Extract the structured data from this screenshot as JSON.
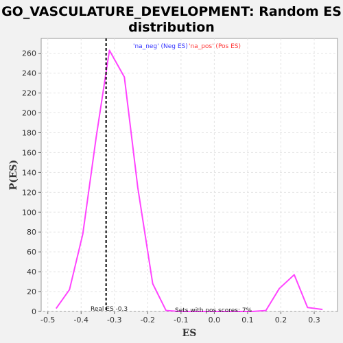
{
  "chart_data": {
    "type": "line",
    "title_line1": "GO_VASCULATURE_DEVELOPMENT: Random ES",
    "title_line2": "distribution",
    "xlabel": "ES",
    "ylabel": "P(ES)",
    "xlim": [
      -0.52,
      0.37
    ],
    "ylim": [
      0,
      275
    ],
    "xticks": [
      -0.5,
      -0.4,
      -0.3,
      -0.2,
      -0.1,
      0.0,
      0.1,
      0.2,
      0.3
    ],
    "xtick_labels": [
      "-0.5",
      "-0.4",
      "-0.3",
      "-0.2",
      "-0.1",
      "0.0",
      "0.1",
      "0.2",
      "0.3"
    ],
    "yticks": [
      0,
      20,
      40,
      60,
      80,
      100,
      120,
      140,
      160,
      180,
      200,
      220,
      240,
      260
    ],
    "ytick_labels": [
      "0",
      "20",
      "40",
      "60",
      "80",
      "100",
      "120",
      "140",
      "160",
      "180",
      "200",
      "220",
      "240",
      "260"
    ],
    "grid": true,
    "legend": [
      {
        "label": "'na_neg' (Neg ES)",
        "color": "#3333ff"
      },
      {
        "label": "'na_pos' (Pos ES)",
        "color": "#ff3333"
      }
    ],
    "series": [
      {
        "color": "#ff44ff",
        "x": [
          -0.475,
          -0.435,
          -0.395,
          -0.355,
          -0.315,
          -0.27,
          -0.23,
          -0.185,
          -0.145,
          -0.105,
          -0.065,
          -0.025,
          0.015,
          0.075,
          0.115,
          0.155,
          0.195,
          0.24,
          0.28,
          0.325
        ],
        "y": [
          3,
          22,
          78,
          175,
          263,
          236,
          125,
          28,
          1,
          0,
          0,
          0,
          0,
          0,
          0,
          1,
          23,
          37,
          4,
          2
        ]
      }
    ],
    "real_es": -0.325,
    "real_es_color": "#000000",
    "annotations": {
      "real_es_label": "Real ES -0.3",
      "pos_scores_label": "Sets with pos scores: 7%"
    }
  }
}
